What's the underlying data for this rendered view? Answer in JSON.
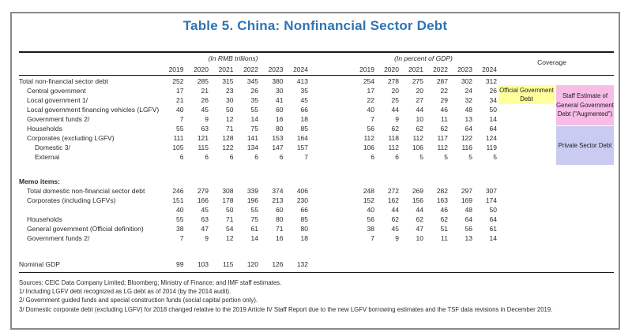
{
  "title": "Table 5. China: Nonfinancial Sector Debt",
  "title_color": "#2E74B5",
  "table": {
    "group1_header": "(In RMB trillions)",
    "group2_header": "(In percent of GDP)",
    "coverage_header": "Coverage",
    "years": [
      "2019",
      "2020",
      "2021",
      "2022",
      "2023",
      "2024"
    ],
    "rows": [
      {
        "label": "Total non-financial sector debt",
        "indent": 0,
        "rmb": [
          252,
          285,
          315,
          345,
          380,
          413
        ],
        "pct": [
          254,
          278,
          275,
          287,
          302,
          312
        ]
      },
      {
        "label": "Central government",
        "indent": 1,
        "rmb": [
          17,
          21,
          23,
          26,
          30,
          35
        ],
        "pct": [
          17,
          20,
          20,
          22,
          24,
          26
        ]
      },
      {
        "label": "Local government 1/",
        "indent": 1,
        "rmb": [
          21,
          26,
          30,
          35,
          41,
          45
        ],
        "pct": [
          22,
          25,
          27,
          29,
          32,
          34
        ]
      },
      {
        "label": "Local government financing vehicles (LGFV)",
        "indent": 1,
        "rmb": [
          40,
          45,
          50,
          55,
          60,
          66
        ],
        "pct": [
          40,
          44,
          44,
          46,
          48,
          50
        ]
      },
      {
        "label": "Government funds 2/",
        "indent": 1,
        "rmb": [
          7,
          9,
          12,
          14,
          16,
          18
        ],
        "pct": [
          7,
          9,
          10,
          11,
          13,
          14
        ]
      },
      {
        "label": "Households",
        "indent": 1,
        "rmb": [
          55,
          63,
          71,
          75,
          80,
          85
        ],
        "pct": [
          56,
          62,
          62,
          62,
          64,
          64
        ]
      },
      {
        "label": "Corporates (excluding LGFV)",
        "indent": 1,
        "rmb": [
          111,
          121,
          128,
          141,
          153,
          164
        ],
        "pct": [
          112,
          118,
          112,
          117,
          122,
          124
        ]
      },
      {
        "label": "Domestic 3/",
        "indent": 2,
        "rmb": [
          105,
          115,
          122,
          134,
          147,
          157
        ],
        "pct": [
          106,
          112,
          106,
          112,
          116,
          119
        ]
      },
      {
        "label": "External",
        "indent": 2,
        "rmb": [
          6,
          6,
          6,
          6,
          6,
          7
        ],
        "pct": [
          6,
          6,
          5,
          5,
          5,
          5
        ]
      },
      {
        "spacer": true,
        "height": 19
      },
      {
        "label": "Memo items:",
        "indent": 0,
        "bold": true,
        "rmb": [],
        "pct": []
      },
      {
        "label": "Total domestic non-financial sector debt",
        "indent": 1,
        "rmb": [
          246,
          279,
          308,
          339,
          374,
          406
        ],
        "pct": [
          248,
          272,
          269,
          282,
          297,
          307
        ]
      },
      {
        "label": "Corporates (including LGFVs)",
        "indent": 1,
        "rmb": [
          151,
          166,
          178,
          196,
          213,
          230
        ],
        "pct": [
          152,
          162,
          156,
          163,
          169,
          174
        ]
      },
      {
        "label": "",
        "indent": 1,
        "rmb": [
          40,
          45,
          50,
          55,
          60,
          66
        ],
        "pct": [
          40,
          44,
          44,
          46,
          48,
          50
        ]
      },
      {
        "label": "Households",
        "indent": 1,
        "rmb": [
          55,
          63,
          71,
          75,
          80,
          85
        ],
        "pct": [
          56,
          62,
          62,
          62,
          64,
          64
        ]
      },
      {
        "label": "General government (Official definition)",
        "indent": 1,
        "rmb": [
          38,
          47,
          54,
          61,
          71,
          80
        ],
        "pct": [
          38,
          45,
          47,
          51,
          56,
          61
        ]
      },
      {
        "label": "Government funds 2/",
        "indent": 1,
        "rmb": [
          7,
          9,
          12,
          14,
          16,
          18
        ],
        "pct": [
          7,
          9,
          10,
          11,
          13,
          14
        ]
      },
      {
        "spacer": true,
        "height": 21
      },
      {
        "label": "Nominal GDP",
        "indent": 0,
        "rmb": [
          99,
          103,
          115,
          120,
          126,
          132
        ],
        "pct": []
      }
    ]
  },
  "coverage": {
    "official": {
      "label": "Official Government Debt",
      "color": "#FFFF9C"
    },
    "augmented": {
      "label": "Staff Estimate of General Government Debt (\"Augmented\")",
      "color": "#F8BDE7"
    },
    "private_sector": {
      "label": "Private Sector Debt",
      "color": "#C9CBF0"
    }
  },
  "footnotes": [
    "Sources: CEIC Data Company Limited; Bloomberg; Ministry of Finance; and IMF staff estimates.",
    "1/ Including LGFV debt recognized as LG debt as of 2014 (by the 2014 audit).",
    "2/ Government guided funds and special construction funds (social capital portion only).",
    "3/ Domestic corporate debt (excluding LGFV) for 2018 changed relative to the 2019 Article IV Staff Report due to the new LGFV borrowing estimates and the TSF data revisions in December 2019."
  ]
}
